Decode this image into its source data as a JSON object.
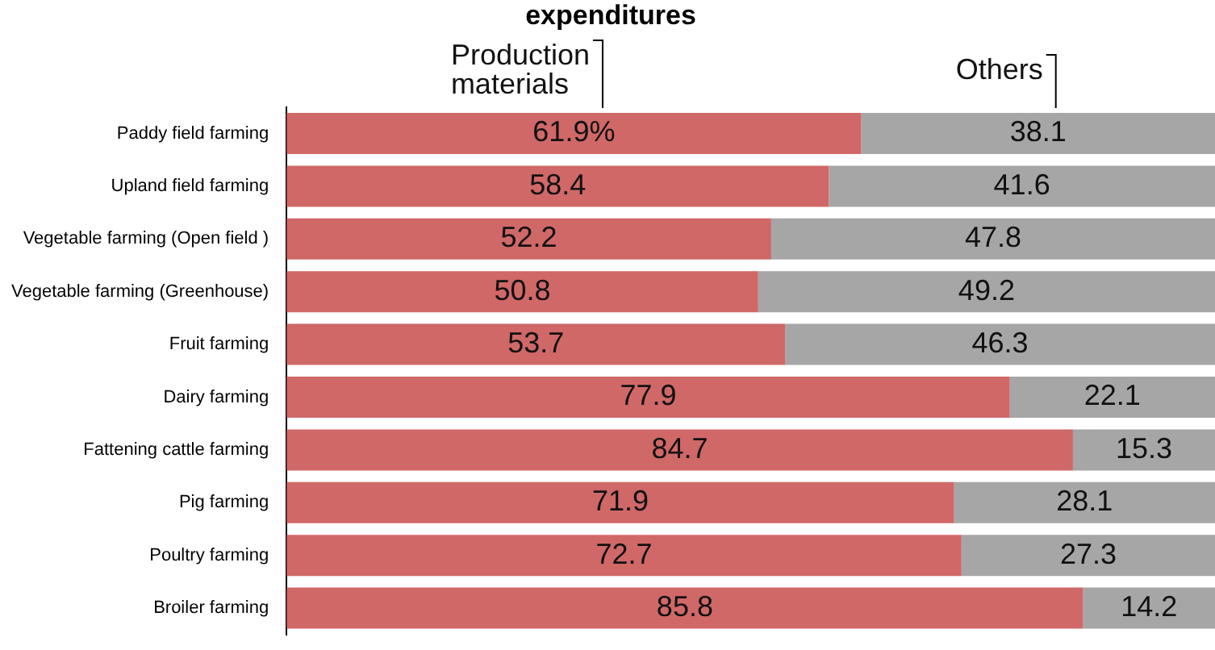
{
  "chart_data": {
    "type": "bar",
    "orientation": "horizontal",
    "stacked": true,
    "title": "expenditures",
    "tick_labels": "y",
    "xlim": [
      0,
      100
    ],
    "categories": [
      "Paddy field farming",
      "Upland field farming",
      "Vegetable farming (Open field )",
      "Vegetable farming (Greenhouse)",
      "Fruit farming",
      "Dairy farming",
      "Fattening cattle farming",
      "Pig farming",
      "Poultry farming",
      "Broiler farming"
    ],
    "series": [
      {
        "name": "Production materials",
        "color": "#d06868",
        "values": [
          61.9,
          58.4,
          52.2,
          50.8,
          53.7,
          77.9,
          84.7,
          71.9,
          72.7,
          85.8
        ],
        "value_labels": [
          "61.9%",
          "58.4",
          "52.2",
          "50.8",
          "53.7",
          "77.9",
          "84.7",
          "71.9",
          "72.7",
          "85.8"
        ]
      },
      {
        "name": "Others",
        "color": "#a6a6a6",
        "values": [
          38.1,
          41.6,
          47.8,
          49.2,
          46.3,
          22.1,
          15.3,
          28.1,
          27.3,
          14.2
        ],
        "value_labels": [
          "38.1",
          "41.6",
          "47.8",
          "49.2",
          "46.3",
          "22.1",
          "15.3",
          "28.1",
          "27.3",
          "14.2"
        ]
      }
    ]
  }
}
